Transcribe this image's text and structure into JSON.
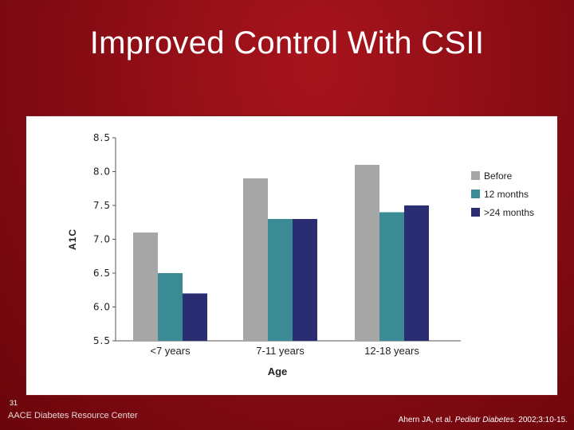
{
  "slide": {
    "title": "Improved Control With CSII",
    "number": "31",
    "organization": "AACE Diabetes Resource Center",
    "citation": {
      "authors": "Ahern JA, et al.",
      "journal": "Pediatr Diabetes.",
      "details": "2002;3:10-15."
    }
  },
  "colors": {
    "before": "#a6a6a6",
    "months12": "#3a8b93",
    "months24": "#2b2d72",
    "background": "#8a0a12"
  },
  "chart_data": {
    "type": "bar",
    "title": "",
    "xlabel": "Age",
    "ylabel": "A1C",
    "ylim": [
      5.5,
      8.5
    ],
    "yticks": [
      "8.5",
      "8.0",
      "7.5",
      "7.0",
      "6.5",
      "6.0",
      "5.5"
    ],
    "categories": [
      "<7 years",
      "7-11 years",
      "12-18 years"
    ],
    "legend_position": "right",
    "series": [
      {
        "name": "Before",
        "color": "#a6a6a6",
        "values": [
          7.1,
          7.9,
          8.1
        ]
      },
      {
        "name": "12 months",
        "color": "#3a8b93",
        "values": [
          6.5,
          7.3,
          7.4
        ]
      },
      {
        "name": ">24 months",
        "color": "#2b2d72",
        "values": [
          6.2,
          7.3,
          7.5
        ]
      }
    ]
  }
}
